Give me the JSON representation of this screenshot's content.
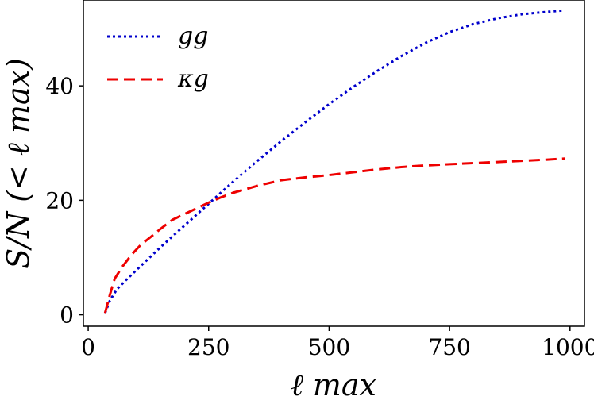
{
  "chart_data": {
    "type": "line",
    "title": "",
    "xlabel": "ℓ max",
    "ylabel": "S/N (< ℓ max)",
    "xlim": [
      -10,
      1030
    ],
    "ylim": [
      -2,
      55
    ],
    "xticks": [
      0,
      250,
      500,
      750,
      1000
    ],
    "yticks": [
      0,
      20,
      40
    ],
    "grid": false,
    "legend_position": "top-left",
    "series": [
      {
        "name": "gg",
        "color": "#0000cc",
        "linestyle": "dotted",
        "x": [
          35,
          45,
          60,
          80,
          100,
          125,
          150,
          175,
          200,
          225,
          250,
          275,
          300,
          350,
          400,
          450,
          500,
          550,
          600,
          650,
          700,
          750,
          800,
          850,
          900,
          950,
          990
        ],
        "y": [
          0.3,
          2.5,
          4.5,
          6.2,
          7.8,
          9.8,
          11.8,
          13.7,
          15.6,
          17.5,
          19.4,
          21.3,
          23.2,
          26.8,
          30.3,
          33.6,
          36.8,
          39.8,
          42.6,
          45.2,
          47.5,
          49.4,
          50.8,
          51.8,
          52.5,
          52.9,
          53.2
        ]
      },
      {
        "name": "κg",
        "color": "#ee0000",
        "linestyle": "dashed",
        "x": [
          35,
          45,
          55,
          70,
          90,
          110,
          130,
          150,
          175,
          200,
          225,
          250,
          275,
          300,
          350,
          400,
          450,
          500,
          550,
          600,
          650,
          700,
          750,
          800,
          850,
          900,
          950,
          990
        ],
        "y": [
          0.3,
          3.5,
          6.3,
          8.3,
          10.5,
          12.3,
          13.6,
          15.0,
          16.6,
          17.6,
          18.6,
          19.6,
          20.5,
          21.3,
          22.5,
          23.5,
          24.0,
          24.4,
          24.9,
          25.4,
          25.8,
          26.1,
          26.3,
          26.5,
          26.7,
          26.9,
          27.1,
          27.3
        ]
      }
    ]
  }
}
